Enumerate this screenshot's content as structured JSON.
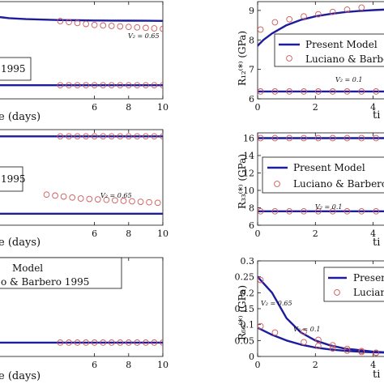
{
  "chart_data": [
    {
      "id": "left-top",
      "type": "line",
      "xlabel": "e (days)",
      "ylabel": "",
      "xlim": [
        0,
        10
      ],
      "xticks": [
        6,
        8,
        10
      ],
      "ylim": [
        0,
        1
      ],
      "yticks": [],
      "legend_entries": [
        "1995"
      ],
      "annotations": [
        "V₂ = 0.65"
      ],
      "series": [
        {
          "style": "line",
          "x": [
            0,
            1,
            2,
            3,
            4,
            5,
            6,
            7,
            8,
            9,
            10
          ],
          "y": [
            0.85,
            0.83,
            0.82,
            0.815,
            0.81,
            0.808,
            0.806,
            0.805,
            0.804,
            0.803,
            0.802
          ]
        },
        {
          "style": "markers",
          "x": [
            4,
            4.5,
            5,
            5.5,
            6,
            6.5,
            7,
            7.5,
            8,
            8.5,
            9,
            9.5,
            10
          ],
          "y": [
            0.8,
            0.79,
            0.78,
            0.77,
            0.76,
            0.755,
            0.75,
            0.745,
            0.74,
            0.735,
            0.73,
            0.725,
            0.72
          ]
        },
        {
          "style": "line",
          "x": [
            0,
            10
          ],
          "y": [
            0.14,
            0.14
          ]
        },
        {
          "style": "markers",
          "x": [
            4,
            4.5,
            5,
            5.5,
            6,
            6.5,
            7,
            7.5,
            8,
            8.5,
            9,
            9.5,
            10
          ],
          "y": [
            0.14,
            0.14,
            0.14,
            0.14,
            0.14,
            0.14,
            0.14,
            0.14,
            0.14,
            0.14,
            0.14,
            0.14,
            0.14
          ]
        }
      ]
    },
    {
      "id": "left-mid",
      "type": "line",
      "xlabel": "e (days)",
      "ylabel": "",
      "xlim": [
        0,
        10
      ],
      "xticks": [
        6,
        8,
        10
      ],
      "ylim": [
        0,
        1
      ],
      "yticks": [],
      "legend_entries": [
        "1995"
      ],
      "annotations": [
        "V₂ = 0.65"
      ],
      "series": [
        {
          "style": "line",
          "x": [
            0,
            10
          ],
          "y": [
            0.93,
            0.93
          ]
        },
        {
          "style": "markers",
          "x": [
            4,
            4.5,
            5,
            5.5,
            6,
            6.5,
            7,
            7.5,
            8,
            8.5,
            9,
            9.5,
            10
          ],
          "y": [
            0.93,
            0.93,
            0.93,
            0.93,
            0.93,
            0.93,
            0.93,
            0.93,
            0.93,
            0.93,
            0.93,
            0.93,
            0.93
          ]
        },
        {
          "style": "line",
          "x": [
            0,
            10
          ],
          "y": [
            0.12,
            0.12
          ]
        },
        {
          "style": "markers",
          "x": [
            3.2,
            3.7,
            4.2,
            4.7,
            5.2,
            5.7,
            6.2,
            6.7,
            7.2,
            7.7,
            8.2,
            8.7,
            9.2,
            9.7
          ],
          "y": [
            0.32,
            0.31,
            0.3,
            0.29,
            0.28,
            0.275,
            0.27,
            0.265,
            0.26,
            0.255,
            0.25,
            0.245,
            0.24,
            0.235
          ]
        }
      ]
    },
    {
      "id": "left-bot",
      "type": "line",
      "xlabel": "e (days)",
      "ylabel": "",
      "xlim": [
        0,
        10
      ],
      "xticks": [
        6,
        8,
        10
      ],
      "ylim": [
        0,
        1
      ],
      "yticks": [],
      "legend_entries": [
        "Model",
        "o & Barbero 1995"
      ],
      "annotations": [],
      "series": [
        {
          "style": "line",
          "x": [
            0,
            10
          ],
          "y": [
            0.14,
            0.14
          ]
        },
        {
          "style": "markers",
          "x": [
            4,
            4.5,
            5,
            5.5,
            6,
            6.5,
            7,
            7.5,
            8,
            8.5,
            9,
            9.5,
            10
          ],
          "y": [
            0.14,
            0.14,
            0.14,
            0.14,
            0.14,
            0.14,
            0.14,
            0.14,
            0.14,
            0.14,
            0.14,
            0.14,
            0.14
          ]
        }
      ]
    },
    {
      "id": "right-top",
      "type": "line",
      "xlabel": "ti",
      "ylabel": "R₁₂⁽*⁾ (GPa)",
      "xlim": [
        0,
        4.6
      ],
      "xticks": [
        0,
        2,
        4
      ],
      "ylim": [
        6,
        9.3
      ],
      "yticks": [
        6,
        7,
        8,
        9
      ],
      "legend_entries": [
        "Present Model",
        "Luciano & Barbe"
      ],
      "annotations": [
        "V₂ = 0.1"
      ],
      "series": [
        {
          "style": "line",
          "x": [
            0,
            0.2,
            0.5,
            1,
            1.5,
            2,
            2.5,
            3,
            3.5,
            4,
            4.6
          ],
          "y": [
            7.8,
            8.0,
            8.22,
            8.5,
            8.68,
            8.8,
            8.88,
            8.94,
            8.98,
            9.01,
            9.04
          ]
        },
        {
          "style": "markers",
          "x": [
            0.1,
            0.6,
            1.1,
            1.6,
            2.1,
            2.6,
            3.1,
            3.6
          ],
          "y": [
            8.35,
            8.6,
            8.7,
            8.8,
            8.87,
            8.95,
            9.03,
            9.1
          ]
        },
        {
          "style": "line",
          "x": [
            0,
            4.6
          ],
          "y": [
            6.25,
            6.25
          ]
        },
        {
          "style": "markers",
          "x": [
            0.1,
            0.6,
            1.1,
            1.6,
            2.1,
            2.6,
            3.1,
            3.6,
            4.1
          ],
          "y": [
            6.25,
            6.25,
            6.25,
            6.25,
            6.25,
            6.25,
            6.25,
            6.25,
            6.25
          ]
        }
      ]
    },
    {
      "id": "right-mid",
      "type": "line",
      "xlabel": "ti",
      "ylabel": "R₃₃⁽*⁾ (GPa)",
      "xlim": [
        0,
        4.6
      ],
      "xticks": [
        0,
        2,
        4
      ],
      "ylim": [
        6,
        16.6
      ],
      "yticks": [
        6,
        8,
        10,
        12,
        14,
        16
      ],
      "legend_entries": [
        "Present Model",
        "Luciano & Barbero"
      ],
      "annotations": [
        "V₂ = 0.1"
      ],
      "series": [
        {
          "style": "line",
          "x": [
            0,
            4.6
          ],
          "y": [
            16.0,
            16.0
          ]
        },
        {
          "style": "markers",
          "x": [
            0.1,
            0.6,
            1.1,
            1.6,
            2.1,
            2.6,
            3.1,
            3.6,
            4.1
          ],
          "y": [
            16.0,
            16.0,
            16.0,
            16.0,
            16.0,
            16.0,
            16.0,
            16.0,
            16.0
          ]
        },
        {
          "style": "line",
          "x": [
            0,
            4.6
          ],
          "y": [
            7.6,
            7.6
          ]
        },
        {
          "style": "markers",
          "x": [
            0.1,
            0.6,
            1.1,
            1.6,
            2.1,
            2.6,
            3.1,
            3.6,
            4.1
          ],
          "y": [
            7.6,
            7.6,
            7.6,
            7.6,
            7.6,
            7.6,
            7.6,
            7.6,
            7.6
          ]
        }
      ]
    },
    {
      "id": "right-bot",
      "type": "line",
      "xlabel": "ti",
      "ylabel": "R₆₆⁽*⁾ (GPa)",
      "xlim": [
        0,
        4.6
      ],
      "xticks": [
        0,
        2,
        4
      ],
      "ylim": [
        0,
        0.3
      ],
      "yticks": [
        0,
        0.05,
        0.1,
        0.15,
        0.2,
        0.25,
        0.3
      ],
      "legend_entries": [
        "Present",
        "Lucian"
      ],
      "annotations": [
        "V₂ = 0.65",
        "V₂ = 0.1"
      ],
      "series": [
        {
          "style": "line",
          "x": [
            0,
            0.5,
            1,
            1.5,
            2,
            2.5,
            3,
            3.5,
            4,
            4.6
          ],
          "y": [
            0.25,
            0.2,
            0.12,
            0.075,
            0.05,
            0.035,
            0.025,
            0.02,
            0.015,
            0.012
          ]
        },
        {
          "style": "markers",
          "x": [
            0.1,
            1.6,
            2.1,
            2.6,
            3.1,
            3.6,
            4.1
          ],
          "y": [
            0.24,
            0.077,
            0.052,
            0.035,
            0.024,
            0.017,
            0.012
          ]
        },
        {
          "style": "line",
          "x": [
            0,
            0.5,
            1,
            1.5,
            2,
            2.5,
            3,
            3.5,
            4,
            4.6
          ],
          "y": [
            0.09,
            0.068,
            0.05,
            0.037,
            0.028,
            0.022,
            0.018,
            0.015,
            0.013,
            0.012
          ]
        },
        {
          "style": "markers",
          "x": [
            0.1,
            0.6,
            1.6,
            2.1,
            2.6,
            3.1,
            3.6,
            4.1
          ],
          "y": [
            0.095,
            0.075,
            0.045,
            0.033,
            0.025,
            0.018,
            0.014,
            0.011
          ]
        }
      ]
    }
  ],
  "colors": {
    "line": "#1c1c9c",
    "marker": "#d05858",
    "axis": "#111111"
  }
}
